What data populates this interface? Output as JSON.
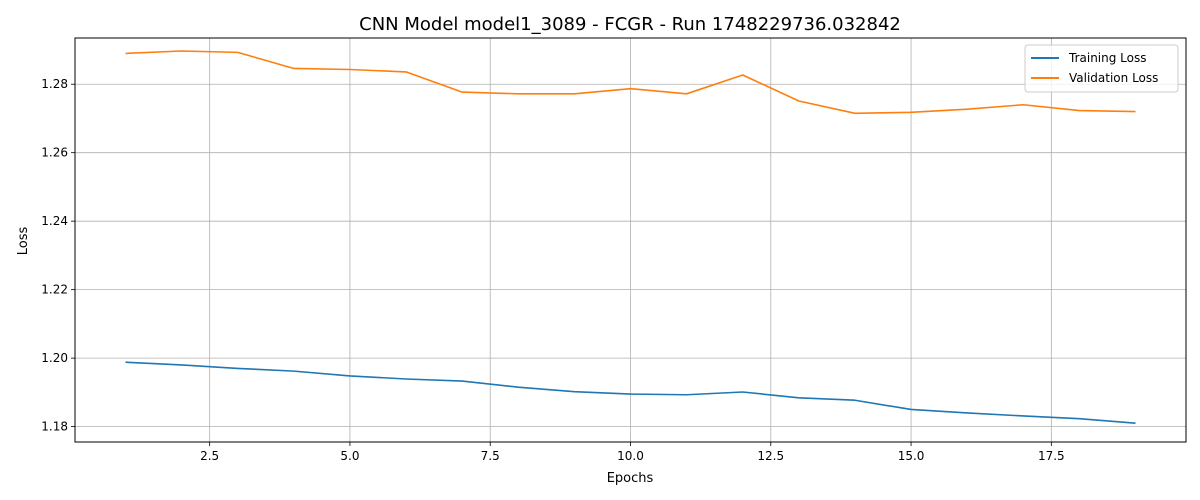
{
  "chart_data": {
    "type": "line",
    "title": "CNN Model model1_3089 - FCGR - Run 1748229736.032842",
    "xlabel": "Epochs",
    "ylabel": "Loss",
    "xlim": [
      0.1,
      19.9
    ],
    "ylim": [
      1.1755,
      1.2935
    ],
    "xticks": [
      2.5,
      5.0,
      7.5,
      10.0,
      12.5,
      15.0,
      17.5
    ],
    "xtick_labels": [
      "2.5",
      "5.0",
      "7.5",
      "10.0",
      "12.5",
      "15.0",
      "17.5"
    ],
    "yticks": [
      1.18,
      1.2,
      1.22,
      1.24,
      1.26,
      1.28
    ],
    "ytick_labels": [
      "1.18",
      "1.20",
      "1.22",
      "1.24",
      "1.26",
      "1.28"
    ],
    "grid": true,
    "legend_position": "top-right",
    "x": [
      1,
      2,
      3,
      4,
      5,
      6,
      7,
      8,
      9,
      10,
      11,
      12,
      13,
      14,
      15,
      16,
      17,
      18,
      19
    ],
    "series": [
      {
        "name": "Training Loss",
        "color": "#1f77b4",
        "values": [
          1.1988,
          1.198,
          1.197,
          1.1962,
          1.1948,
          1.1939,
          1.1933,
          1.1915,
          1.1902,
          1.1895,
          1.1893,
          1.1901,
          1.1884,
          1.1877,
          1.185,
          1.184,
          1.1831,
          1.1823,
          1.181
        ]
      },
      {
        "name": "Validation Loss",
        "color": "#ff7f0e",
        "values": [
          1.289,
          1.2897,
          1.2893,
          1.2846,
          1.2843,
          1.2836,
          1.2777,
          1.2772,
          1.2772,
          1.2787,
          1.2772,
          1.2827,
          1.2751,
          1.2715,
          1.2718,
          1.2727,
          1.274,
          1.2723,
          1.272
        ]
      }
    ]
  }
}
